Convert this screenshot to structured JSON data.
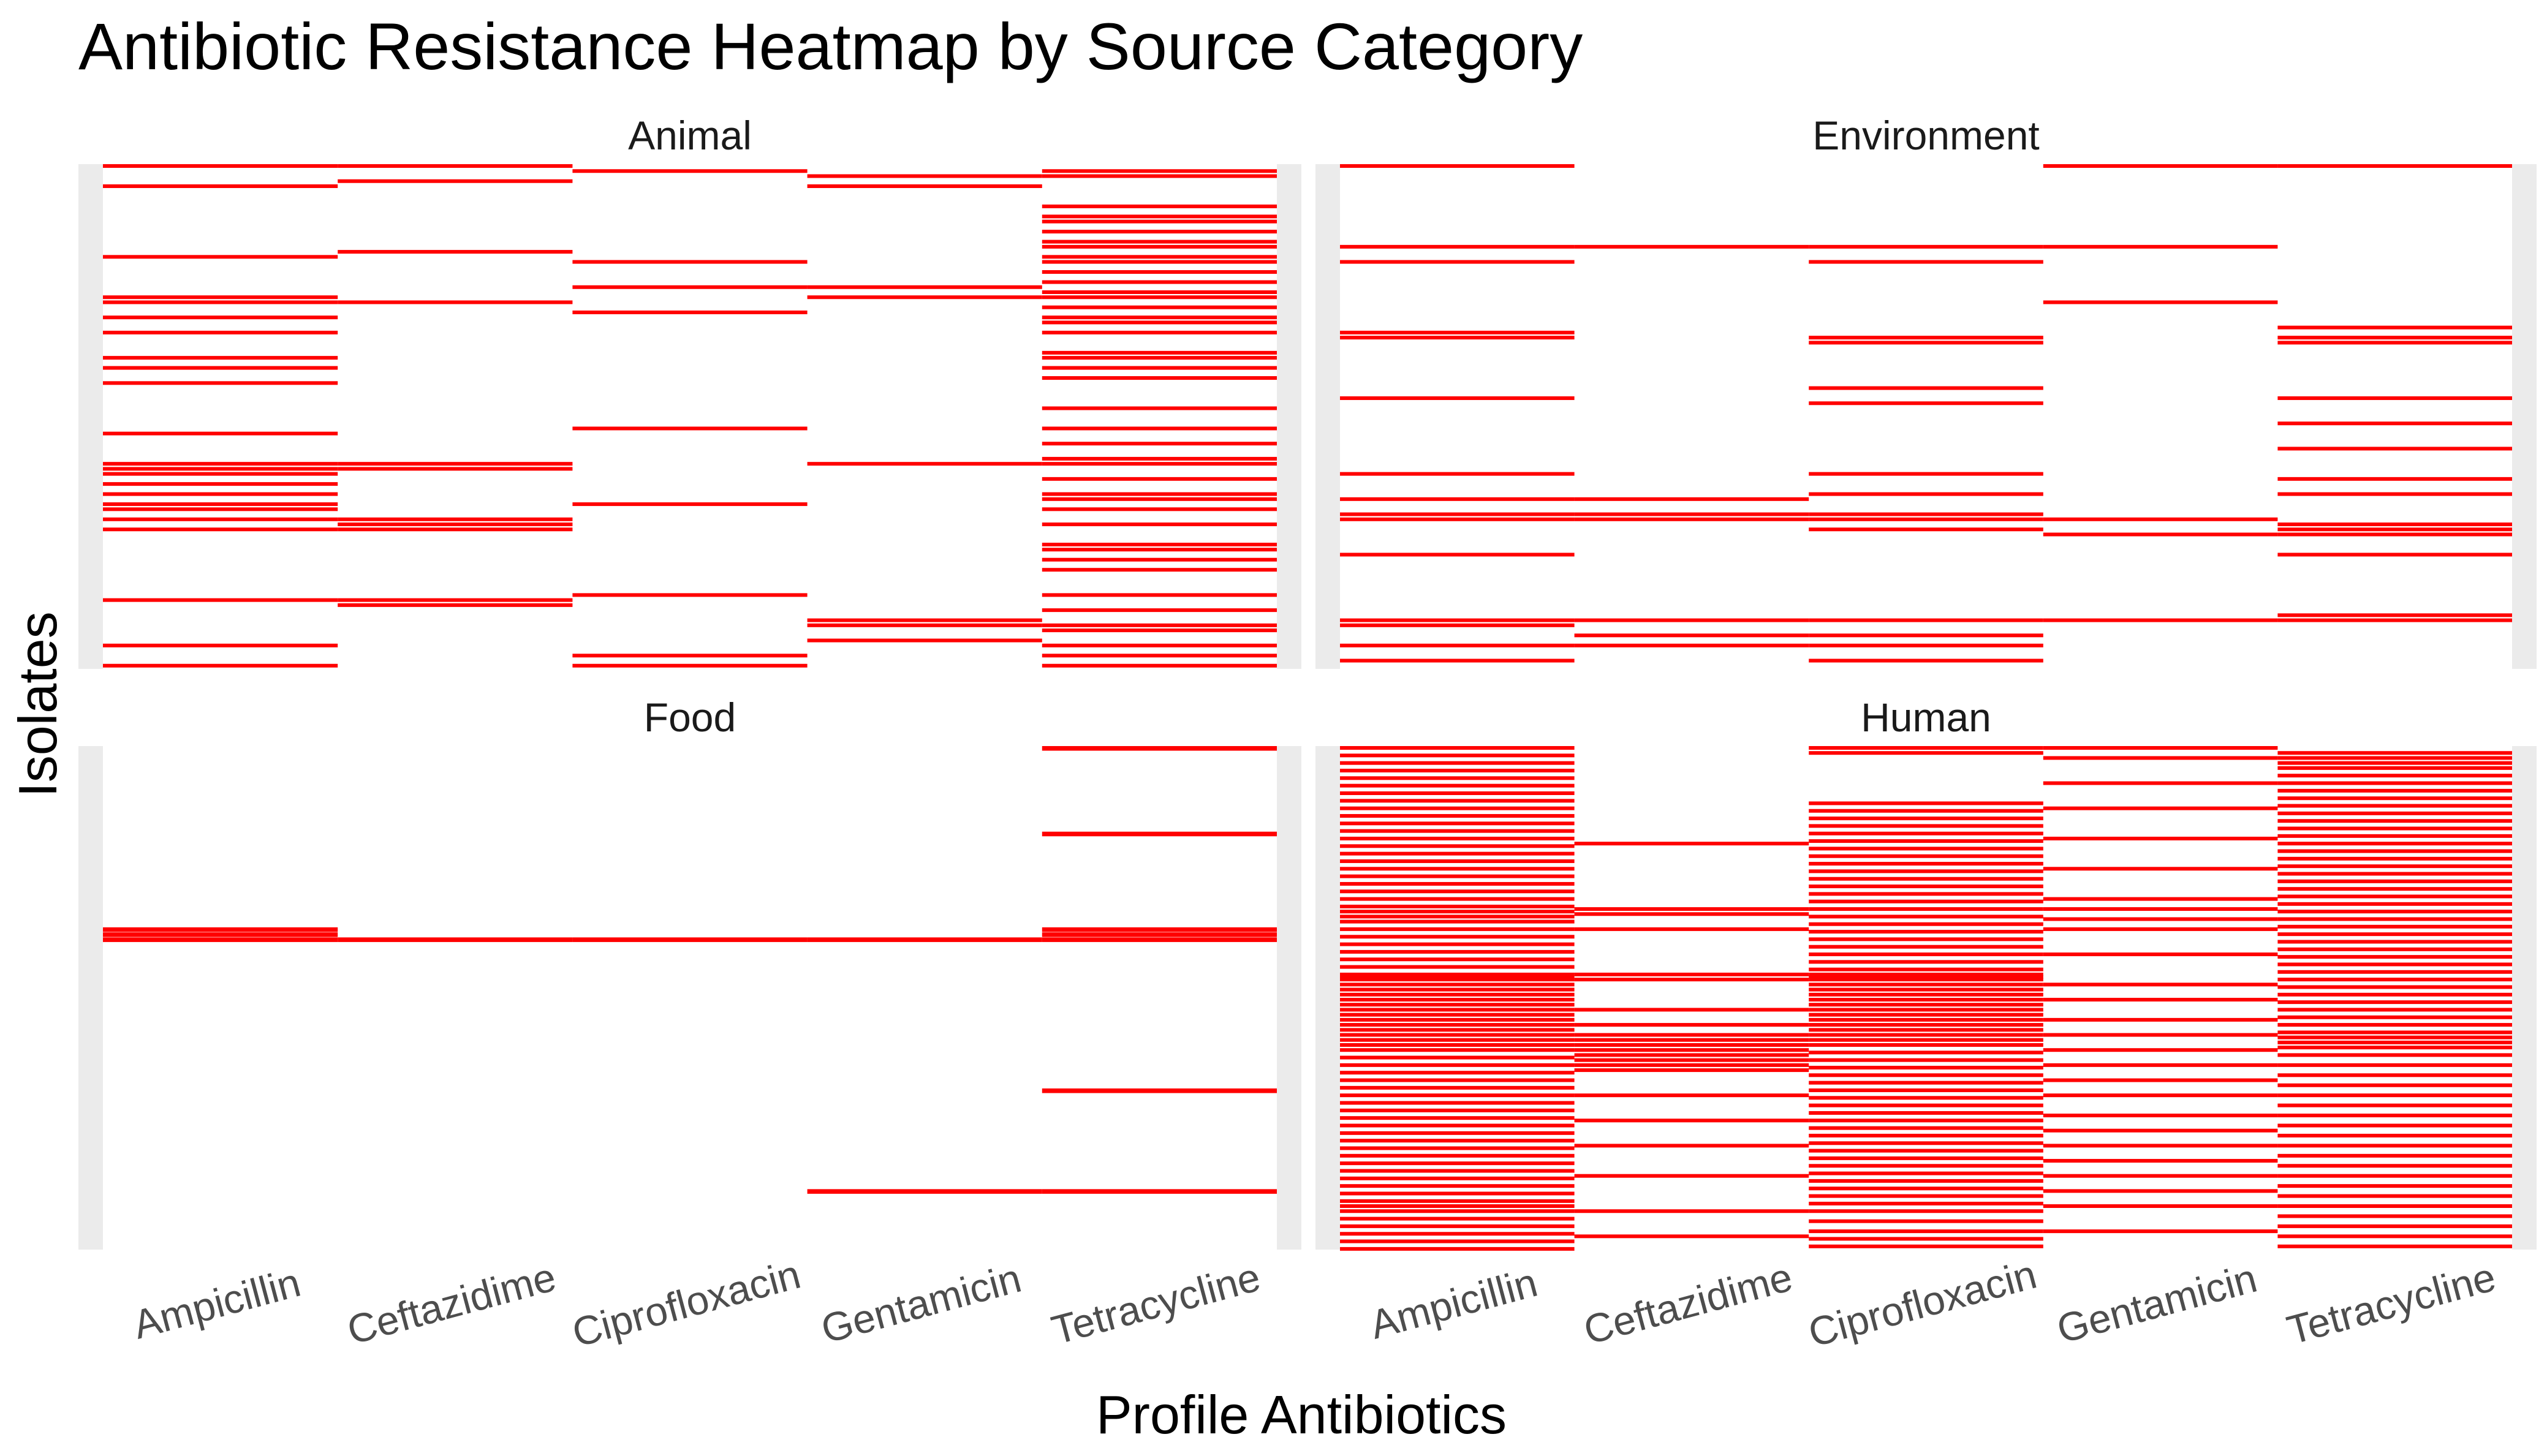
{
  "chart_data": {
    "type": "heatmap",
    "title": "Antibiotic Resistance Heatmap by Source Category",
    "xlabel": "Profile Antibiotics",
    "ylabel": "Isolates",
    "categories": [
      "Ampicillin",
      "Ceftazidime",
      "Ciprofloxacin",
      "Gentamicin",
      "Tetracycline"
    ],
    "colors": {
      "resistant": "#ff0000",
      "susceptible": "#ffffff",
      "grid": "#ebebeb",
      "text": "#000000",
      "tick_text": "#4d4d4d"
    },
    "value_note": "resistant isolate rows, 0 = top of panel, 1 = bottom",
    "facets": [
      {
        "name": "Animal",
        "rows": 100,
        "resistant": {
          "Ampicillin": [
            0.0,
            0.04,
            0.18,
            0.26,
            0.27,
            0.3,
            0.33,
            0.38,
            0.4,
            0.43,
            0.53,
            0.59,
            0.6,
            0.61,
            0.63,
            0.65,
            0.67,
            0.68,
            0.7,
            0.72,
            0.86,
            0.95,
            0.99
          ],
          "Ceftazidime": [
            0.0,
            0.03,
            0.17,
            0.27,
            0.59,
            0.6,
            0.7,
            0.71,
            0.72,
            0.86,
            0.87
          ],
          "Ciprofloxacin": [
            0.01,
            0.19,
            0.24,
            0.29,
            0.52,
            0.67,
            0.85,
            0.97,
            0.99
          ],
          "Gentamicin": [
            0.02,
            0.04,
            0.24,
            0.26,
            0.59,
            0.9,
            0.91,
            0.94
          ],
          "Tetracycline": [
            0.01,
            0.02,
            0.08,
            0.1,
            0.11,
            0.13,
            0.15,
            0.16,
            0.18,
            0.19,
            0.21,
            0.23,
            0.25,
            0.26,
            0.28,
            0.3,
            0.31,
            0.33,
            0.37,
            0.38,
            0.4,
            0.42,
            0.48,
            0.52,
            0.55,
            0.58,
            0.59,
            0.62,
            0.65,
            0.66,
            0.68,
            0.71,
            0.75,
            0.76,
            0.78,
            0.8,
            0.85,
            0.88,
            0.91,
            0.92,
            0.95,
            0.97,
            0.99
          ]
        }
      },
      {
        "name": "Environment",
        "rows": 100,
        "resistant": {
          "Ampicillin": [
            0.0,
            0.16,
            0.19,
            0.33,
            0.34,
            0.46,
            0.61,
            0.66,
            0.69,
            0.7,
            0.77,
            0.9,
            0.91,
            0.95,
            0.98
          ],
          "Ceftazidime": [
            0.16,
            0.66,
            0.69,
            0.7,
            0.9,
            0.93,
            0.95
          ],
          "Ciprofloxacin": [
            0.16,
            0.19,
            0.34,
            0.35,
            0.44,
            0.47,
            0.61,
            0.65,
            0.69,
            0.7,
            0.72,
            0.9,
            0.93,
            0.95,
            0.98
          ],
          "Gentamicin": [
            0.0,
            0.16,
            0.27,
            0.7,
            0.73,
            0.9
          ],
          "Tetracycline": [
            0.0,
            0.32,
            0.34,
            0.35,
            0.46,
            0.51,
            0.56,
            0.62,
            0.65,
            0.71,
            0.72,
            0.73,
            0.77,
            0.89,
            0.9
          ]
        }
      },
      {
        "name": "Food",
        "rows": 60,
        "resistant": {
          "Ampicillin": [
            0.36,
            0.37,
            0.38
          ],
          "Ceftazidime": [
            0.38
          ],
          "Ciprofloxacin": [
            0.38
          ],
          "Gentamicin": [
            0.38,
            0.88
          ],
          "Tetracycline": [
            0.0,
            0.17,
            0.36,
            0.37,
            0.38,
            0.68,
            0.88
          ]
        }
      },
      {
        "name": "Human",
        "rows": 200,
        "resistant": {
          "Ampicillin": [
            0.0,
            0.015,
            0.03,
            0.045,
            0.06,
            0.075,
            0.09,
            0.105,
            0.12,
            0.135,
            0.15,
            0.165,
            0.18,
            0.195,
            0.21,
            0.225,
            0.24,
            0.255,
            0.27,
            0.285,
            0.3,
            0.315,
            0.325,
            0.335,
            0.345,
            0.36,
            0.375,
            0.39,
            0.405,
            0.42,
            0.435,
            0.45,
            0.455,
            0.46,
            0.47,
            0.48,
            0.49,
            0.5,
            0.51,
            0.52,
            0.53,
            0.54,
            0.55,
            0.56,
            0.57,
            0.58,
            0.59,
            0.6,
            0.615,
            0.63,
            0.645,
            0.66,
            0.675,
            0.69,
            0.705,
            0.72,
            0.735,
            0.75,
            0.765,
            0.78,
            0.795,
            0.81,
            0.825,
            0.84,
            0.855,
            0.87,
            0.885,
            0.9,
            0.91,
            0.92,
            0.935,
            0.95,
            0.965,
            0.98,
            0.995
          ],
          "Ceftazidime": [
            0.19,
            0.32,
            0.33,
            0.36,
            0.45,
            0.46,
            0.52,
            0.55,
            0.57,
            0.58,
            0.59,
            0.6,
            0.61,
            0.62,
            0.63,
            0.64,
            0.69,
            0.74,
            0.79,
            0.85,
            0.92,
            0.97
          ],
          "Ciprofloxacin": [
            0.0,
            0.01,
            0.11,
            0.125,
            0.14,
            0.155,
            0.17,
            0.185,
            0.2,
            0.215,
            0.23,
            0.245,
            0.26,
            0.275,
            0.29,
            0.305,
            0.32,
            0.335,
            0.35,
            0.365,
            0.38,
            0.395,
            0.41,
            0.425,
            0.44,
            0.45,
            0.455,
            0.46,
            0.47,
            0.48,
            0.49,
            0.5,
            0.51,
            0.52,
            0.53,
            0.54,
            0.55,
            0.56,
            0.57,
            0.58,
            0.59,
            0.605,
            0.62,
            0.635,
            0.65,
            0.665,
            0.68,
            0.695,
            0.71,
            0.725,
            0.74,
            0.755,
            0.77,
            0.785,
            0.8,
            0.815,
            0.83,
            0.845,
            0.86,
            0.875,
            0.89,
            0.905,
            0.92,
            0.94,
            0.96,
            0.975,
            0.99
          ],
          "Gentamicin": [
            0.0,
            0.02,
            0.07,
            0.12,
            0.18,
            0.24,
            0.3,
            0.32,
            0.34,
            0.36,
            0.41,
            0.47,
            0.5,
            0.54,
            0.57,
            0.6,
            0.63,
            0.66,
            0.69,
            0.73,
            0.76,
            0.79,
            0.82,
            0.85,
            0.88,
            0.91,
            0.96
          ],
          "Tetracycline": [
            0.01,
            0.02,
            0.03,
            0.04,
            0.055,
            0.07,
            0.085,
            0.1,
            0.115,
            0.13,
            0.145,
            0.16,
            0.175,
            0.19,
            0.205,
            0.22,
            0.235,
            0.25,
            0.265,
            0.28,
            0.295,
            0.31,
            0.325,
            0.34,
            0.355,
            0.37,
            0.385,
            0.4,
            0.415,
            0.43,
            0.445,
            0.46,
            0.475,
            0.49,
            0.505,
            0.52,
            0.535,
            0.55,
            0.565,
            0.575,
            0.585,
            0.595,
            0.61,
            0.63,
            0.65,
            0.67,
            0.69,
            0.71,
            0.73,
            0.75,
            0.77,
            0.79,
            0.81,
            0.83,
            0.85,
            0.87,
            0.89,
            0.91,
            0.93,
            0.95,
            0.97,
            0.99
          ]
        }
      }
    ]
  }
}
